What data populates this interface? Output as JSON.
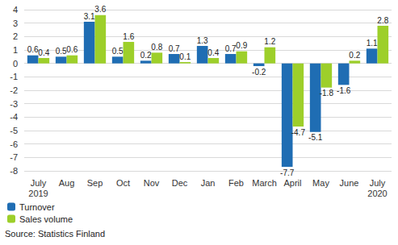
{
  "chart_data": {
    "type": "bar",
    "categories": [
      "July\n2019",
      "Aug",
      "Sep",
      "Oct",
      "Nov",
      "Dec",
      "Jan",
      "Feb",
      "March",
      "April",
      "May",
      "June",
      "July\n2020"
    ],
    "series": [
      {
        "name": "Turnover",
        "color": "#1f6db3",
        "values": [
          0.6,
          0.5,
          3.1,
          0.5,
          0.2,
          0.7,
          1.3,
          0.7,
          -0.2,
          -7.7,
          -5.1,
          -1.6,
          1.1
        ]
      },
      {
        "name": "Sales volume",
        "color": "#9dcf2a",
        "values": [
          0.4,
          0.6,
          3.6,
          1.6,
          0.8,
          0.1,
          0.4,
          0.9,
          1.2,
          -4.7,
          -1.8,
          0.2,
          2.8
        ]
      }
    ],
    "ylim": [
      -8,
      4
    ],
    "yticks": [
      -8,
      -7,
      -6,
      -5,
      -4,
      -3,
      -2,
      -1,
      0,
      1,
      2,
      3,
      4
    ],
    "grid": true,
    "data_labels": true,
    "legend": "bottom-left",
    "annotations": [
      "Source: Statistics Finland"
    ]
  }
}
